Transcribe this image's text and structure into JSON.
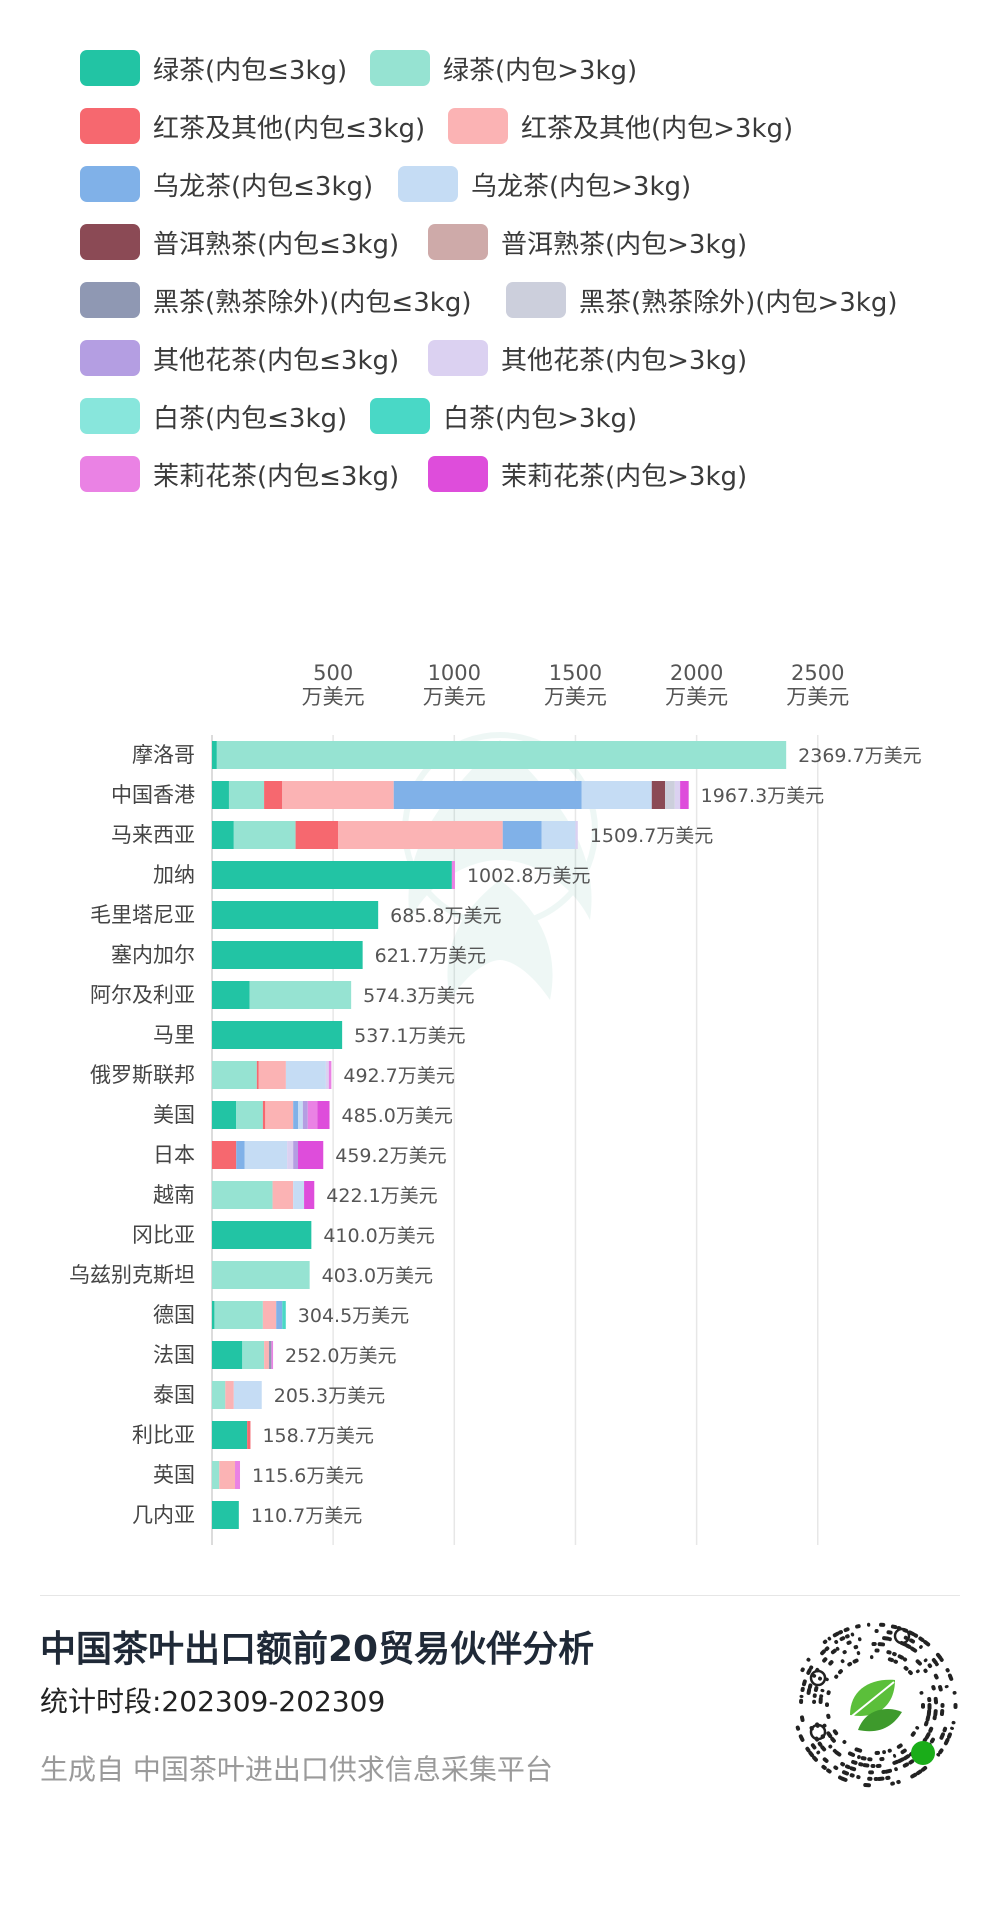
{
  "colors": {
    "green_le3": "#22c4a4",
    "green_gt3": "#96e3d2",
    "black_le3": "#f6686f",
    "black_gt3": "#fbb3b4",
    "oolong_le3": "#80b1e8",
    "oolong_gt3": "#c5dcf4",
    "puer_le3": "#8b4a55",
    "puer_gt3": "#ceaaa9",
    "dark_le3": "#8f98b3",
    "dark_gt3": "#cccfdc",
    "flower_le3": "#b49ee2",
    "flower_gt3": "#dbd1f1",
    "white_le3": "#88e6dc",
    "white_gt3": "#49d8c6",
    "jasmine_le3": "#ea82e4",
    "jasmine_gt3": "#de4ddb"
  },
  "legend": [
    {
      "key": "green_le3",
      "label": "绿茶(内包≤3kg)"
    },
    {
      "key": "green_gt3",
      "label": "绿茶(内包>3kg)"
    },
    {
      "key": "black_le3",
      "label": "红茶及其他(内包≤3kg)"
    },
    {
      "key": "black_gt3",
      "label": "红茶及其他(内包>3kg)"
    },
    {
      "key": "oolong_le3",
      "label": "乌龙茶(内包≤3kg)"
    },
    {
      "key": "oolong_gt3",
      "label": "乌龙茶(内包>3kg)"
    },
    {
      "key": "puer_le3",
      "label": "普洱熟茶(内包≤3kg)"
    },
    {
      "key": "puer_gt3",
      "label": "普洱熟茶(内包>3kg)"
    },
    {
      "key": "dark_le3",
      "label": "黑茶(熟茶除外)(内包≤3kg)"
    },
    {
      "key": "dark_gt3",
      "label": "黑茶(熟茶除外)(内包>3kg)"
    },
    {
      "key": "flower_le3",
      "label": "其他花茶(内包≤3kg)"
    },
    {
      "key": "flower_gt3",
      "label": "其他花茶(内包>3kg)"
    },
    {
      "key": "white_le3",
      "label": "白茶(内包≤3kg)"
    },
    {
      "key": "white_gt3",
      "label": "白茶(内包>3kg)"
    },
    {
      "key": "jasmine_le3",
      "label": "茉莉花茶(内包≤3kg)"
    },
    {
      "key": "jasmine_gt3",
      "label": "茉莉花茶(内包>3kg)"
    }
  ],
  "chart_data": {
    "type": "bar",
    "orientation": "horizontal",
    "stacked": true,
    "unit": "万美元",
    "xlim": [
      0,
      2500
    ],
    "xticks": [
      500,
      1000,
      1500,
      2000,
      2500
    ],
    "xtick_labels": [
      "500 万美元",
      "1000 万美元",
      "1500 万美元",
      "2000 万美元",
      "2500 万美元"
    ],
    "grid": "vertical",
    "categories": [
      "摩洛哥",
      "中国香港",
      "马来西亚",
      "加纳",
      "毛里塔尼亚",
      "塞内加尔",
      "阿尔及利亚",
      "马里",
      "俄罗斯联邦",
      "美国",
      "日本",
      "越南",
      "冈比亚",
      "乌兹别克斯坦",
      "德国",
      "法国",
      "泰国",
      "利比亚",
      "英国",
      "几内亚"
    ],
    "totals": [
      2369.7,
      1967.3,
      1509.7,
      1002.8,
      685.8,
      621.7,
      574.3,
      537.1,
      492.7,
      485.0,
      459.2,
      422.1,
      410.0,
      403.0,
      304.5,
      252.0,
      205.3,
      158.7,
      115.6,
      110.7
    ],
    "total_labels": [
      "2369.7万美元",
      "1967.3万美元",
      "1509.7万美元",
      "1002.8万美元",
      "685.8万美元",
      "621.7万美元",
      "574.3万美元",
      "537.1万美元",
      "492.7万美元",
      "485.0万美元",
      "459.2万美元",
      "422.1万美元",
      "410.0万美元",
      "403.0万美元",
      "304.5万美元",
      "252.0万美元",
      "205.3万美元",
      "158.7万美元",
      "115.6万美元",
      "110.7万美元"
    ],
    "stacks": [
      [
        {
          "k": "green_le3",
          "v": 20
        },
        {
          "k": "green_gt3",
          "v": 2349.7
        }
      ],
      [
        {
          "k": "green_le3",
          "v": 70
        },
        {
          "k": "green_gt3",
          "v": 145
        },
        {
          "k": "black_le3",
          "v": 75
        },
        {
          "k": "black_gt3",
          "v": 460
        },
        {
          "k": "oolong_le3",
          "v": 775
        },
        {
          "k": "oolong_gt3",
          "v": 290
        },
        {
          "k": "puer_le3",
          "v": 55
        },
        {
          "k": "dark_gt3",
          "v": 40
        },
        {
          "k": "flower_gt3",
          "v": 22
        },
        {
          "k": "jasmine_gt3",
          "v": 35.3
        }
      ],
      [
        {
          "k": "green_le3",
          "v": 90
        },
        {
          "k": "green_gt3",
          "v": 255
        },
        {
          "k": "black_le3",
          "v": 175
        },
        {
          "k": "black_gt3",
          "v": 680
        },
        {
          "k": "oolong_le3",
          "v": 160
        },
        {
          "k": "oolong_gt3",
          "v": 140
        },
        {
          "k": "flower_gt3",
          "v": 9.7
        }
      ],
      [
        {
          "k": "green_le3",
          "v": 990
        },
        {
          "k": "jasmine_le3",
          "v": 12.8
        }
      ],
      [
        {
          "k": "green_le3",
          "v": 685.8
        }
      ],
      [
        {
          "k": "green_le3",
          "v": 621.7
        }
      ],
      [
        {
          "k": "green_le3",
          "v": 155
        },
        {
          "k": "green_gt3",
          "v": 419.3
        }
      ],
      [
        {
          "k": "green_le3",
          "v": 537.1
        }
      ],
      [
        {
          "k": "green_gt3",
          "v": 185
        },
        {
          "k": "black_le3",
          "v": 8
        },
        {
          "k": "black_gt3",
          "v": 112
        },
        {
          "k": "oolong_gt3",
          "v": 165
        },
        {
          "k": "flower_gt3",
          "v": 12
        },
        {
          "k": "jasmine_le3",
          "v": 10.7
        }
      ],
      [
        {
          "k": "green_le3",
          "v": 100
        },
        {
          "k": "green_gt3",
          "v": 110
        },
        {
          "k": "black_le3",
          "v": 10
        },
        {
          "k": "black_gt3",
          "v": 115
        },
        {
          "k": "oolong_le3",
          "v": 20
        },
        {
          "k": "oolong_gt3",
          "v": 20
        },
        {
          "k": "flower_le3",
          "v": 20
        },
        {
          "k": "jasmine_le3",
          "v": 40
        },
        {
          "k": "jasmine_gt3",
          "v": 50
        }
      ],
      [
        {
          "k": "black_le3",
          "v": 100
        },
        {
          "k": "oolong_le3",
          "v": 35
        },
        {
          "k": "oolong_gt3",
          "v": 175
        },
        {
          "k": "flower_gt3",
          "v": 25
        },
        {
          "k": "flower_le3",
          "v": 20
        },
        {
          "k": "jasmine_gt3",
          "v": 104.2
        }
      ],
      [
        {
          "k": "green_gt3",
          "v": 250
        },
        {
          "k": "black_gt3",
          "v": 85
        },
        {
          "k": "oolong_gt3",
          "v": 45
        },
        {
          "k": "jasmine_gt3",
          "v": 42.1
        }
      ],
      [
        {
          "k": "green_le3",
          "v": 410.0
        }
      ],
      [
        {
          "k": "green_gt3",
          "v": 403.0
        }
      ],
      [
        {
          "k": "green_le3",
          "v": 10
        },
        {
          "k": "green_gt3",
          "v": 200
        },
        {
          "k": "black_gt3",
          "v": 55
        },
        {
          "k": "oolong_le3",
          "v": 25
        },
        {
          "k": "white_gt3",
          "v": 14.5
        }
      ],
      [
        {
          "k": "green_le3",
          "v": 125
        },
        {
          "k": "green_gt3",
          "v": 90
        },
        {
          "k": "black_gt3",
          "v": 20
        },
        {
          "k": "dark_le3",
          "v": 10
        },
        {
          "k": "jasmine_le3",
          "v": 7
        }
      ],
      [
        {
          "k": "green_gt3",
          "v": 55
        },
        {
          "k": "black_gt3",
          "v": 35
        },
        {
          "k": "oolong_gt3",
          "v": 115.3
        }
      ],
      [
        {
          "k": "green_le3",
          "v": 145
        },
        {
          "k": "black_le3",
          "v": 13.7
        }
      ],
      [
        {
          "k": "green_gt3",
          "v": 30
        },
        {
          "k": "black_gt3",
          "v": 65
        },
        {
          "k": "jasmine_le3",
          "v": 20.6
        }
      ],
      [
        {
          "k": "green_le3",
          "v": 110.7
        }
      ]
    ]
  },
  "footer": {
    "title": "中国茶叶出口额前20贸易伙伴分析",
    "period": "统计时段:202309-202309",
    "source": "生成自 中国茶叶进出口供求信息采集平台"
  }
}
